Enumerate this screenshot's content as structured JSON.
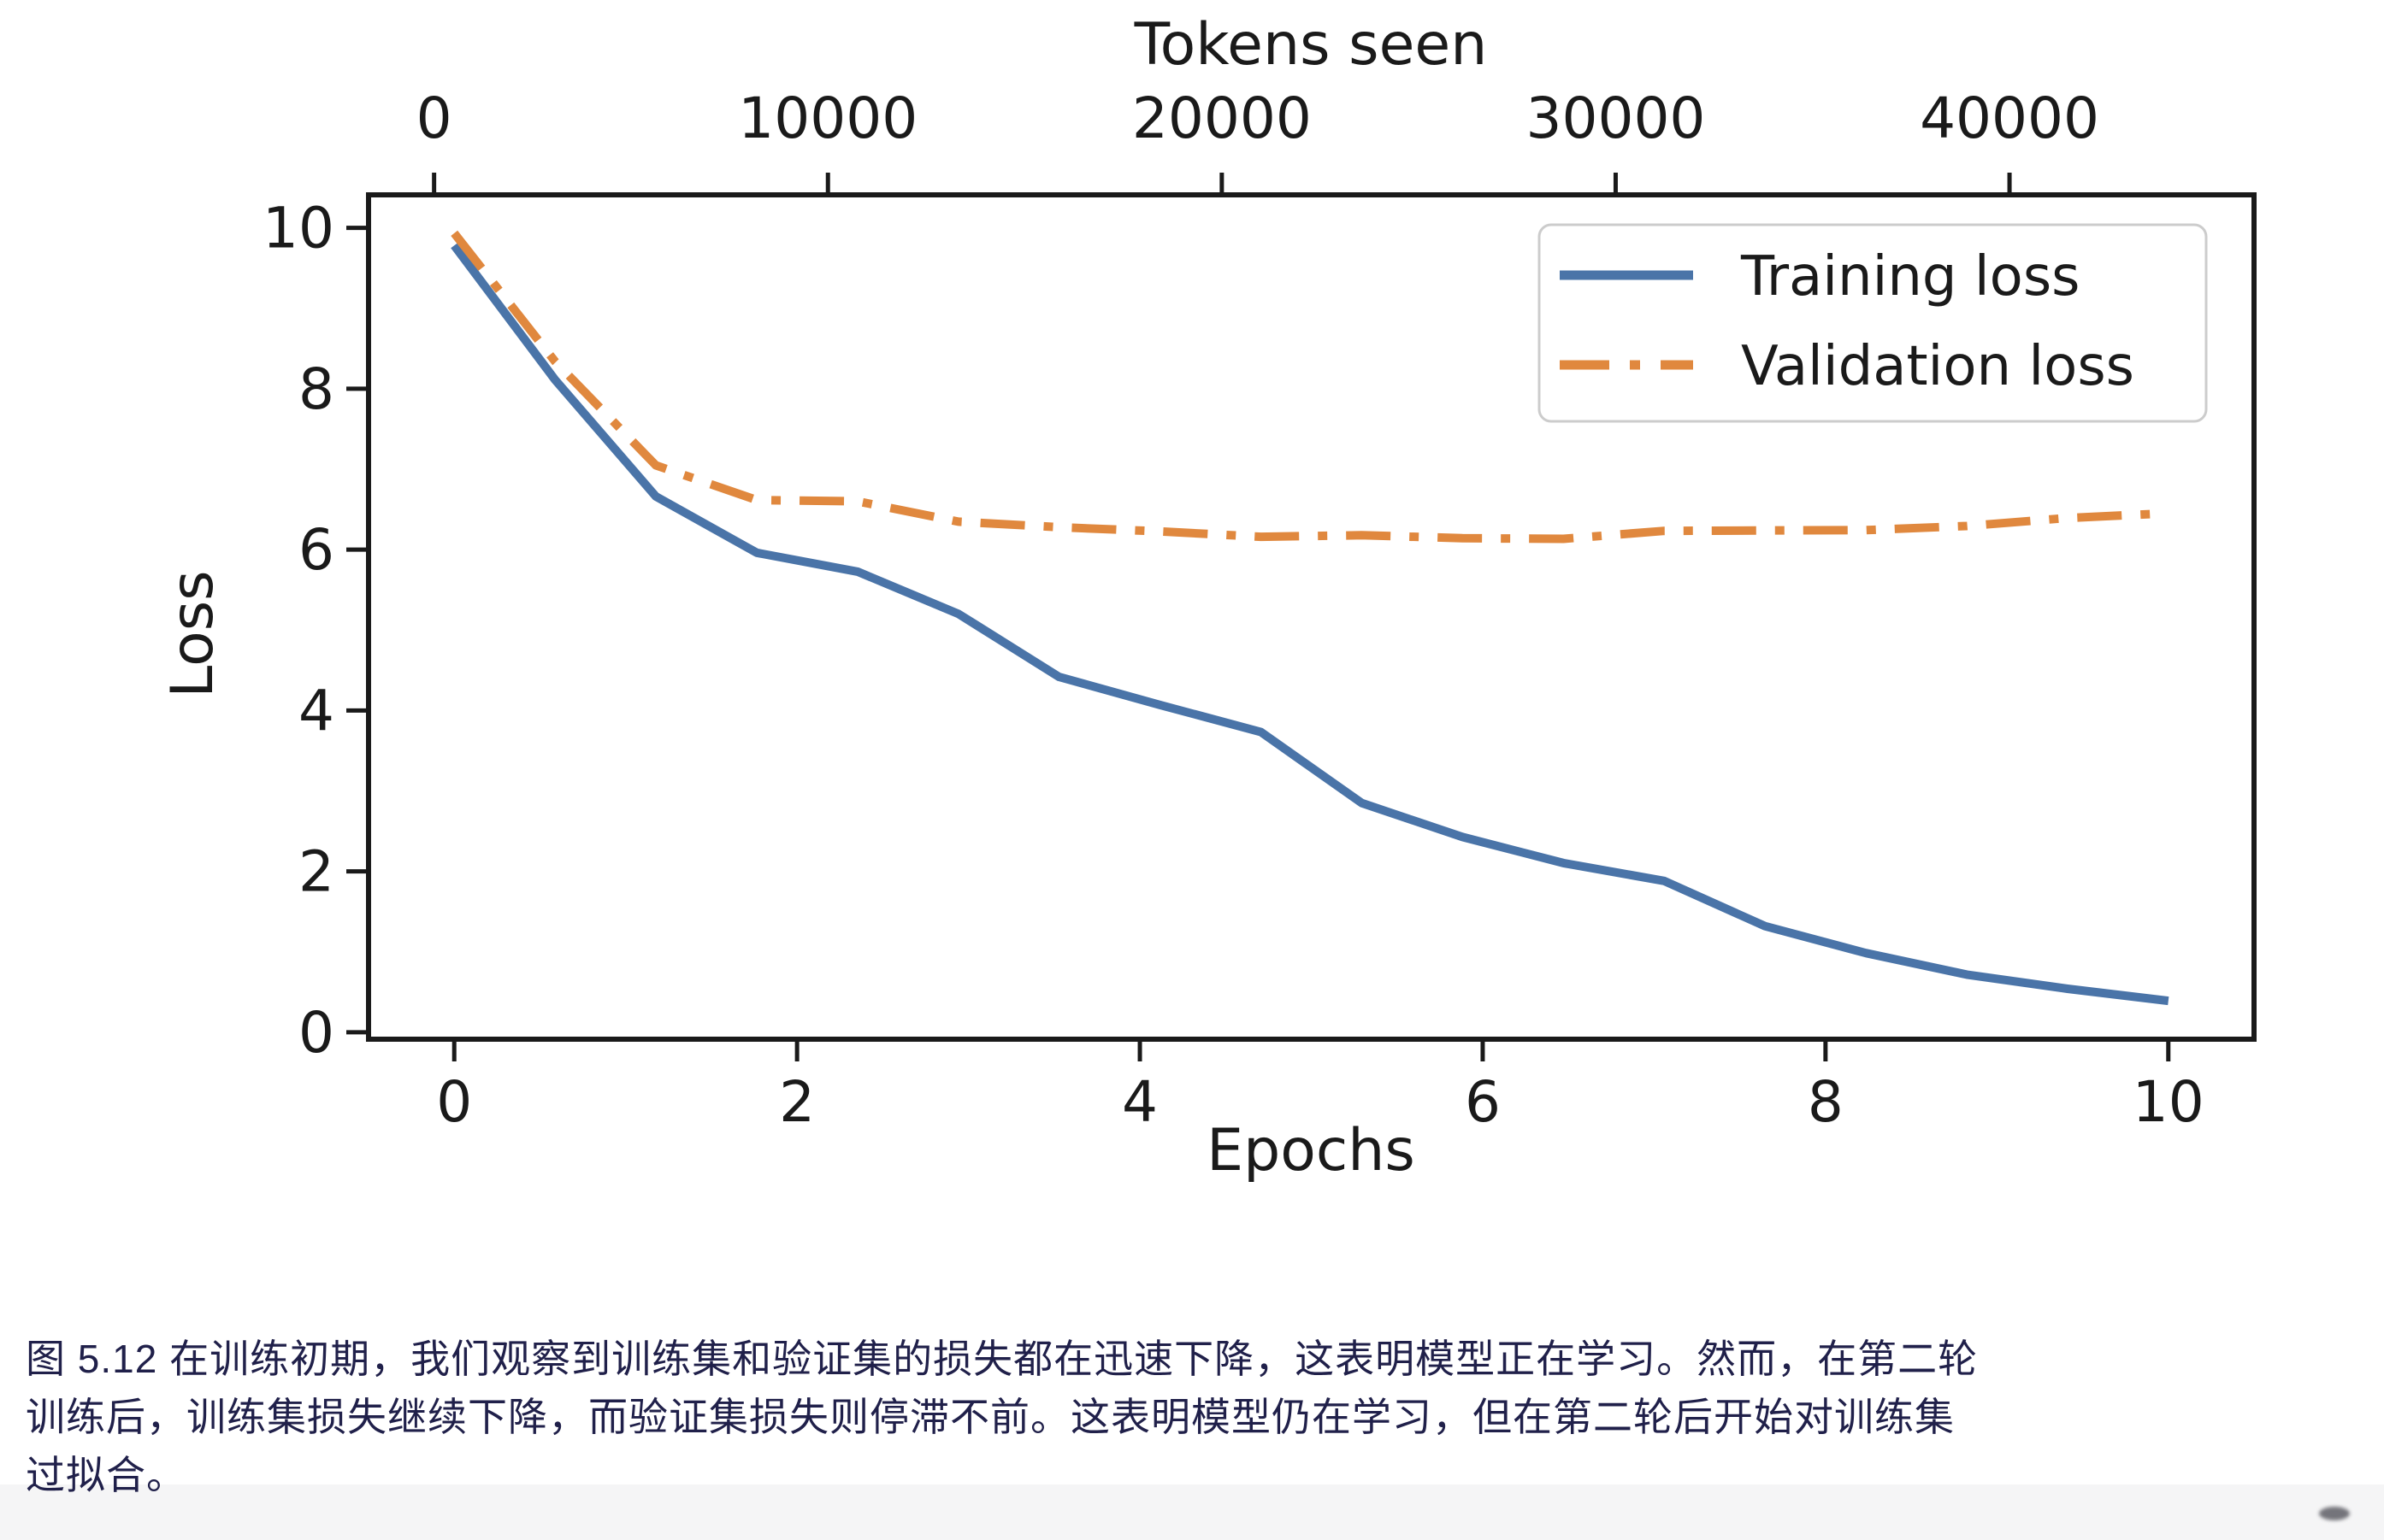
{
  "figure": {
    "top_axis_title": "Tokens seen",
    "x_axis_title": "Epochs",
    "y_axis_title": "Loss",
    "legend": {
      "items": [
        {
          "label": "Training loss"
        },
        {
          "label": "Validation loss"
        }
      ]
    }
  },
  "chart_data": {
    "type": "line",
    "title": "",
    "xlabel": "Epochs",
    "ylabel": "Loss",
    "top_xlabel": "Tokens seen",
    "grid": false,
    "legend_position": "upper right",
    "xlim": [
      -0.5,
      10.5
    ],
    "ylim": [
      -0.086,
      10.41
    ],
    "x_ticks": [
      0,
      2,
      4,
      6,
      8,
      10
    ],
    "y_ticks": [
      0,
      2,
      4,
      6,
      8,
      10
    ],
    "top_ticks": [
      0,
      10000,
      20000,
      30000,
      40000
    ],
    "x": [
      0,
      0.588,
      1.176,
      1.765,
      2.353,
      2.941,
      3.529,
      4.118,
      4.706,
      5.294,
      5.882,
      6.471,
      7.059,
      7.647,
      8.235,
      8.824,
      9.412,
      10
    ],
    "tokens_seen": [
      512,
      3072,
      5632,
      8192,
      10752,
      13312,
      15872,
      18432,
      20992,
      23552,
      26112,
      28672,
      31232,
      33792,
      36352,
      38912,
      41472,
      44032
    ],
    "series": [
      {
        "name": "Training loss",
        "color": "#4a74a8",
        "style": "solid",
        "values": [
          9.781,
          8.111,
          6.661,
          5.961,
          5.726,
          5.201,
          4.417,
          4.069,
          3.732,
          2.85,
          2.427,
          2.104,
          1.882,
          1.32,
          0.985,
          0.717,
          0.541,
          0.391
        ]
      },
      {
        "name": "Validation loss",
        "color": "#e0883e",
        "style": "dashdot",
        "values": [
          9.933,
          8.339,
          7.048,
          6.616,
          6.6,
          6.348,
          6.278,
          6.226,
          6.16,
          6.179,
          6.141,
          6.134,
          6.233,
          6.238,
          6.242,
          6.293,
          6.393,
          6.452
        ]
      }
    ]
  },
  "caption": {
    "lines": [
      "图 5.12 在训练初期，我们观察到训练集和验证集的损失都在迅速下降，这表明模型正在学习。然而，在第二轮",
      "训练后，训练集损失继续下降，而验证集损失则停滞不前。这表明模型仍在学习，但在第二轮后开始对训练集",
      "过拟合。"
    ]
  },
  "colors": {
    "axes": "#1a1a1a",
    "legend_border": "#cccccc",
    "caption_text": "#20204a",
    "training_line": "#4a74a8",
    "validation_line": "#e0883e"
  }
}
